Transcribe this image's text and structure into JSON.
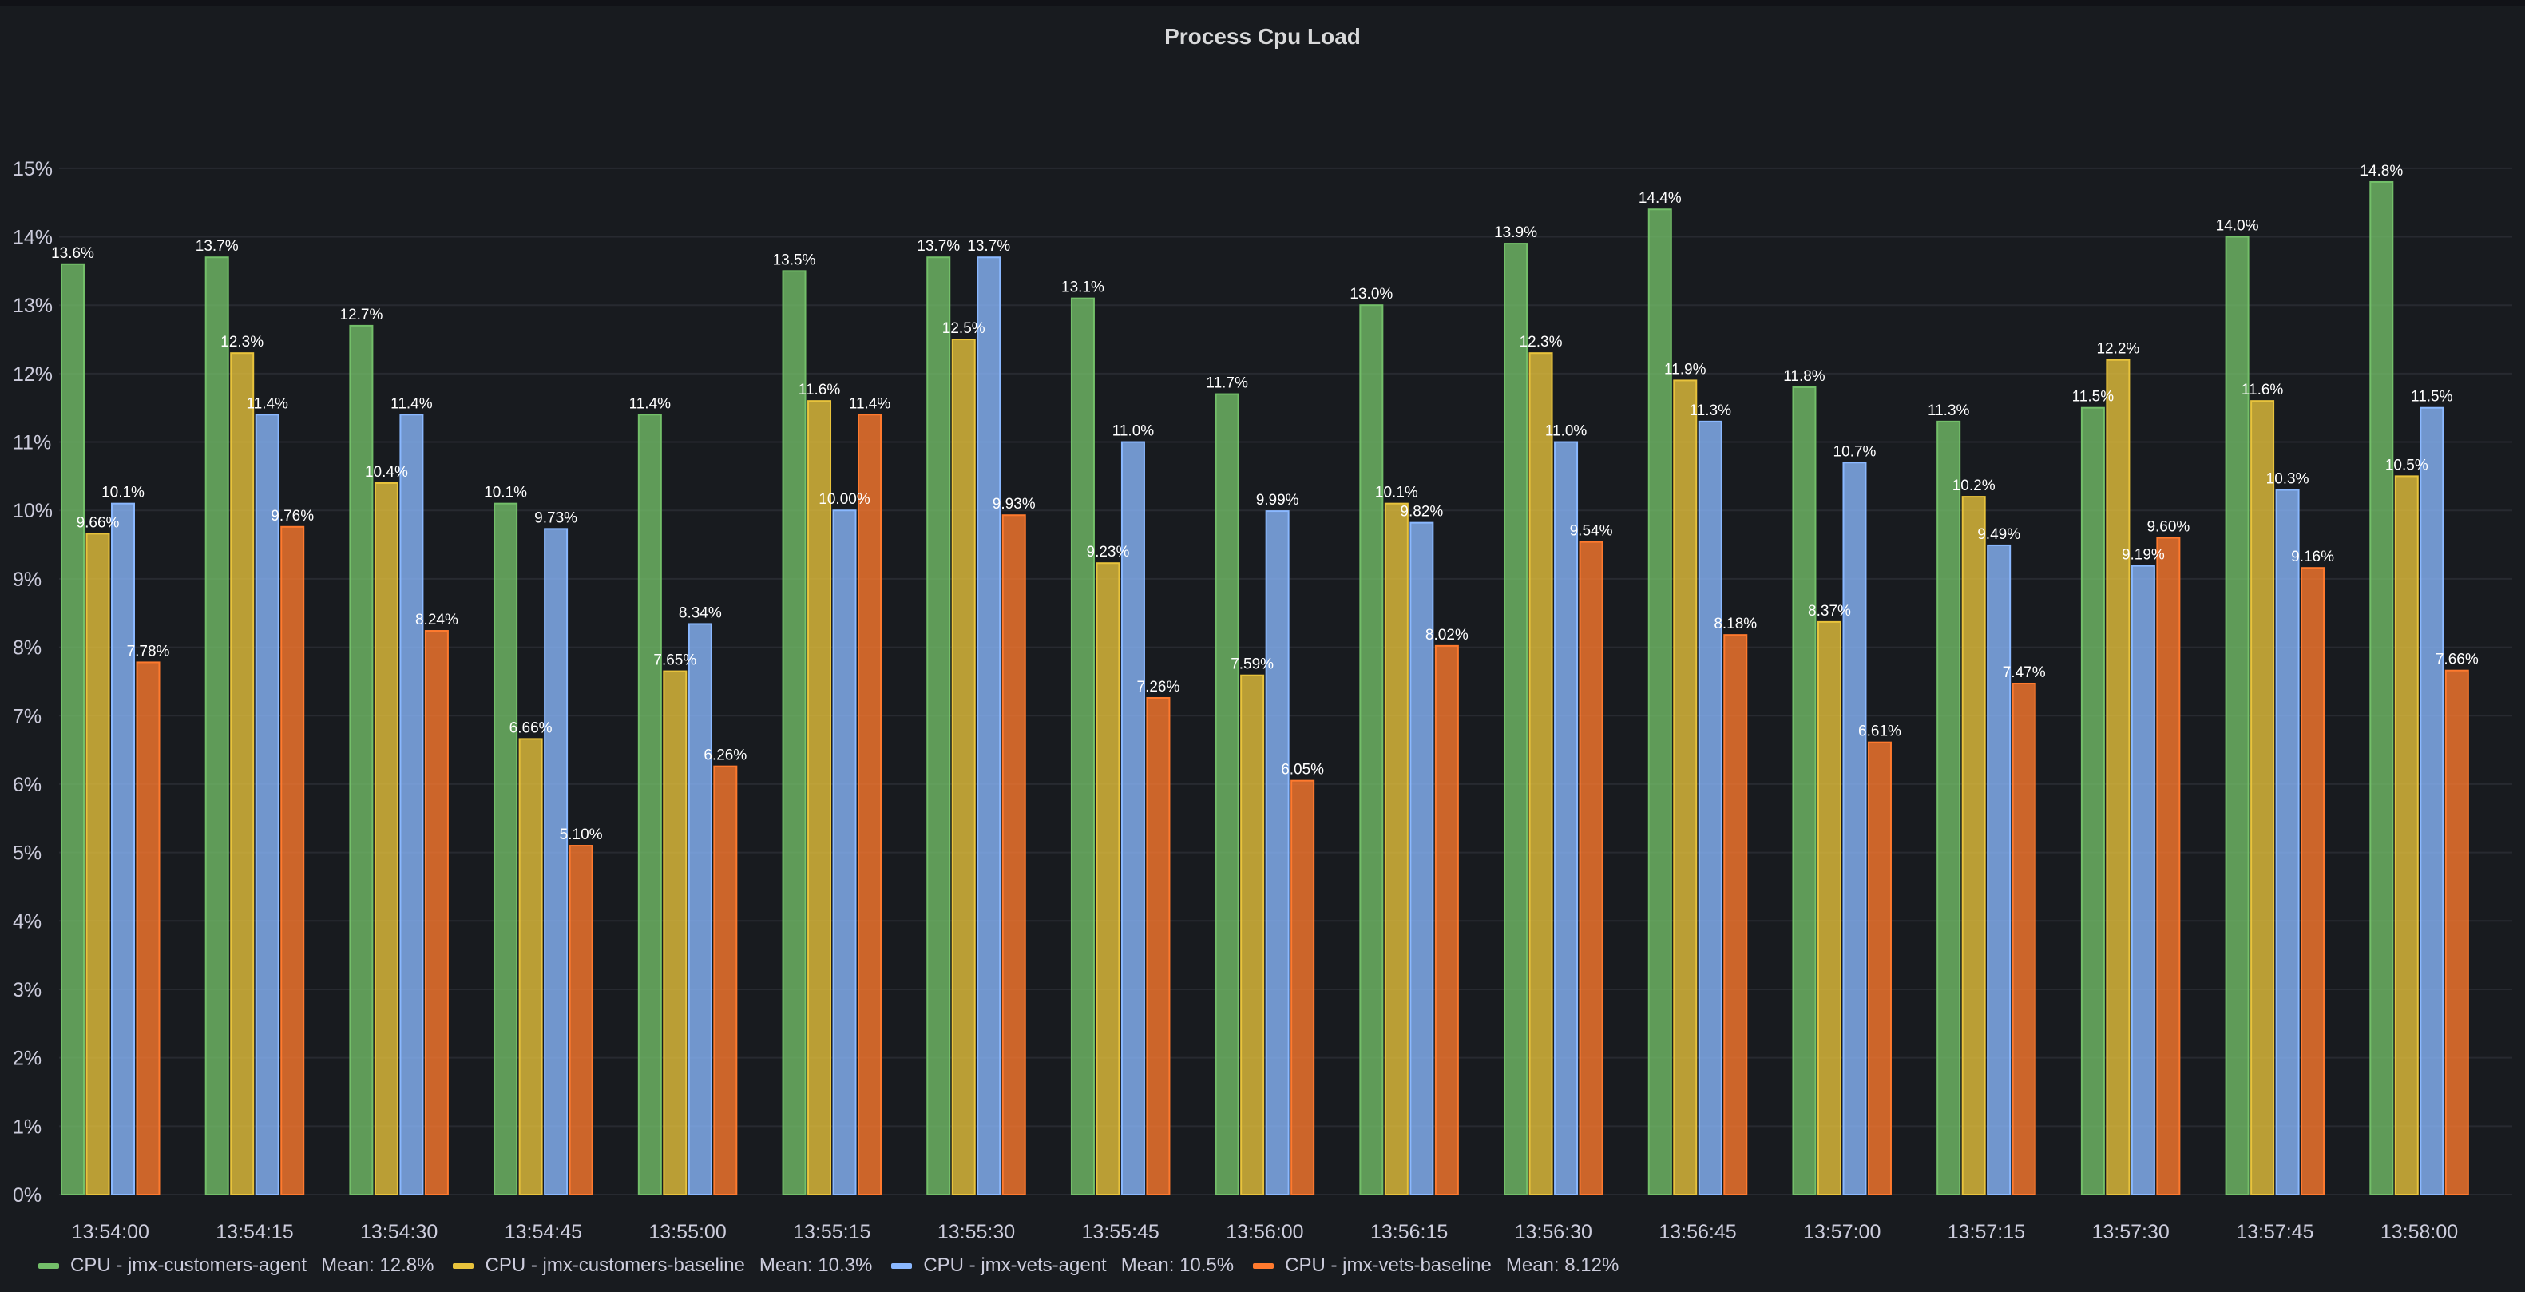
{
  "panel": {
    "title": "Process Cpu Load"
  },
  "chart_data": {
    "type": "bar",
    "title": "Process Cpu Load",
    "xlabel": "",
    "ylabel": "",
    "ylim": [
      0,
      15.5
    ],
    "y_ticks": [
      "0%",
      "1%",
      "2%",
      "3%",
      "4%",
      "5%",
      "6%",
      "7%",
      "8%",
      "9%",
      "10%",
      "11%",
      "12%",
      "13%",
      "14%",
      "15%"
    ],
    "grid": true,
    "legend_position": "bottom-left",
    "categories": [
      "13:54:00",
      "13:54:15",
      "13:54:30",
      "13:54:45",
      "13:55:00",
      "13:55:15",
      "13:55:30",
      "13:55:45",
      "13:56:00",
      "13:56:15",
      "13:56:30",
      "13:56:45",
      "13:57:00",
      "13:57:15",
      "13:57:30",
      "13:57:45",
      "13:58:00"
    ],
    "series": [
      {
        "name": "CPU - jmx-customers-agent",
        "color": "#73bf69",
        "mean": "Mean: 12.8%",
        "values": [
          13.6,
          13.7,
          12.7,
          10.1,
          11.4,
          13.5,
          13.7,
          13.1,
          11.7,
          13.0,
          13.9,
          14.4,
          11.8,
          11.3,
          11.5,
          14.0,
          14.8
        ],
        "labels": [
          "13.6%",
          "13.7%",
          "12.7%",
          "10.1%",
          "11.4%",
          "13.5%",
          "13.7%",
          "13.1%",
          "11.7%",
          "13.0%",
          "13.9%",
          "14.4%",
          "11.8%",
          "11.3%",
          "11.5%",
          "14.0%",
          "14.8%"
        ]
      },
      {
        "name": "CPU - jmx-customers-baseline",
        "color": "#e8c33c",
        "mean": "Mean: 10.3%",
        "values": [
          9.66,
          12.3,
          10.4,
          6.66,
          7.65,
          11.6,
          12.5,
          9.23,
          7.59,
          10.1,
          12.3,
          11.9,
          8.37,
          10.2,
          12.2,
          11.6,
          10.5
        ],
        "labels": [
          "9.66%",
          "12.3%",
          "10.4%",
          "6.66%",
          "7.65%",
          "11.6%",
          "12.5%",
          "9.23%",
          "7.59%",
          "10.1%",
          "12.3%",
          "11.9%",
          "8.37%",
          "10.2%",
          "12.2%",
          "11.6%",
          "10.5%"
        ]
      },
      {
        "name": "CPU - jmx-vets-agent",
        "color": "#8ab8ff",
        "mean": "Mean: 10.5%",
        "values": [
          10.1,
          11.4,
          11.4,
          9.73,
          8.34,
          10.0,
          13.7,
          11.0,
          9.99,
          9.82,
          11.0,
          11.3,
          10.7,
          9.49,
          9.19,
          10.3,
          11.5
        ],
        "labels": [
          "10.1%",
          "11.4%",
          "11.4%",
          "9.73%",
          "8.34%",
          "10.00%",
          "13.7%",
          "11.0%",
          "9.99%",
          "9.82%",
          "11.0%",
          "11.3%",
          "10.7%",
          "9.49%",
          "9.19%",
          "10.3%",
          "11.5%"
        ]
      },
      {
        "name": "CPU - jmx-vets-baseline",
        "color": "#ff7a2e",
        "mean": "Mean: 8.12%",
        "values": [
          7.78,
          9.76,
          8.24,
          5.1,
          6.26,
          11.4,
          9.93,
          7.26,
          6.05,
          8.02,
          9.54,
          8.18,
          6.61,
          7.47,
          9.6,
          9.16,
          7.66
        ],
        "labels": [
          "7.78%",
          "9.76%",
          "8.24%",
          "5.10%",
          "6.26%",
          "11.4%",
          "9.93%",
          "7.26%",
          "6.05%",
          "8.02%",
          "9.54%",
          "8.18%",
          "6.61%",
          "7.47%",
          "9.60%",
          "9.16%",
          "7.66%"
        ]
      }
    ]
  }
}
